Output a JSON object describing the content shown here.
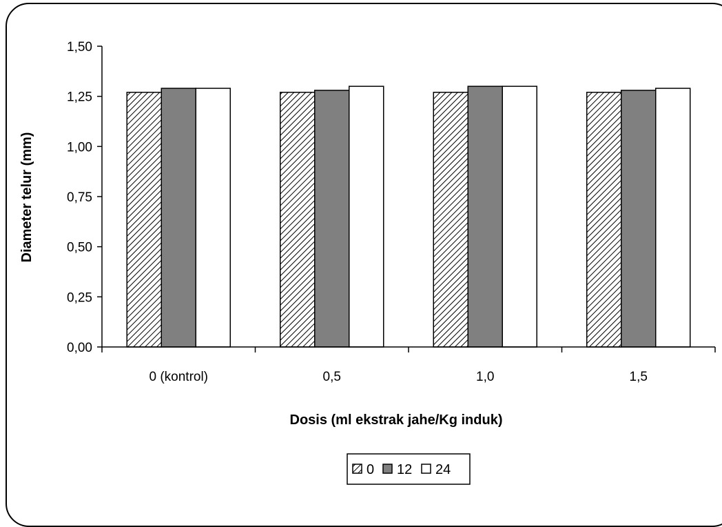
{
  "chart_data": {
    "type": "bar",
    "xlabel": "Dosis (ml ekstrak jahe/Kg induk)",
    "ylabel": "Diameter telur (mm)",
    "ylim": [
      0,
      1.5
    ],
    "yticks": [
      "0,00",
      "0,25",
      "0,50",
      "0,75",
      "1,00",
      "1,25",
      "1,50"
    ],
    "ytick_values": [
      0,
      0.25,
      0.5,
      0.75,
      1.0,
      1.25,
      1.5
    ],
    "categories": [
      "0 (kontrol)",
      "0,5",
      "1,0",
      "1,5"
    ],
    "series": [
      {
        "name": "0",
        "values": [
          1.27,
          1.27,
          1.27,
          1.27
        ],
        "pattern": "hatch",
        "color": "#ffffff"
      },
      {
        "name": "12",
        "values": [
          1.29,
          1.28,
          1.3,
          1.28
        ],
        "pattern": "solid",
        "color": "#808080"
      },
      {
        "name": "24",
        "values": [
          1.29,
          1.3,
          1.3,
          1.29
        ],
        "pattern": "solid",
        "color": "#ffffff"
      }
    ],
    "grid": false,
    "legend_position": "bottom-center"
  }
}
